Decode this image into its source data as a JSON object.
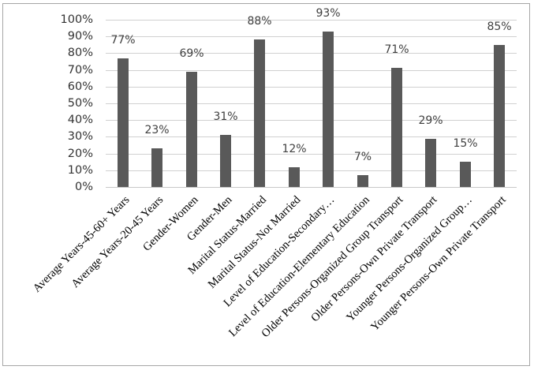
{
  "chart_data": {
    "type": "bar",
    "title": "",
    "xlabel": "",
    "ylabel": "",
    "ylim": [
      0,
      100
    ],
    "y_tick_labels": [
      "0%",
      "10%",
      "20%",
      "30%",
      "40%",
      "50%",
      "60%",
      "70%",
      "80%",
      "90%",
      "100%"
    ],
    "grid": true,
    "legend": null,
    "bar_color": "#595959",
    "categories": [
      "Average Years-45-60+ Years",
      "Average Years-20-45 Years",
      "Gender-Women",
      "Gender-Men",
      "Marital Status-Married",
      "Marital Status-Not Married",
      "Level of Education-Secondary…",
      "Level of Education-Elementary Education",
      "Older Persons-Organized Group Transport",
      "Older Persons-Own Private Transport",
      "Younger Persons-Organized Group…",
      "Younger Persons-Own Private Transport"
    ],
    "values": [
      77,
      23,
      69,
      31,
      88,
      12,
      93,
      7,
      71,
      29,
      15,
      85
    ],
    "data_labels": [
      "77%",
      "23%",
      "69%",
      "31%",
      "88%",
      "12%",
      "93%",
      "7%",
      "71%",
      "29%",
      "15%",
      "85%"
    ]
  }
}
